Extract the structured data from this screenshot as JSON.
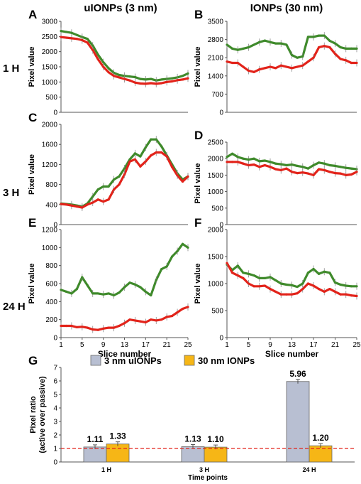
{
  "headers": {
    "col_left": "uIONPs (3 nm)",
    "col_right": "IONPs (30 nm)",
    "row_1": "1 H",
    "row_2": "3 H",
    "row_3": "24 H"
  },
  "colors": {
    "green_series": "#3f8a2b",
    "red_series": "#e2231a",
    "gray_bar": "#b8bfd2",
    "orange_bar": "#f6b616",
    "threshold_line": "#e2231a"
  },
  "chart_data": [
    {
      "panel": "A",
      "type": "line",
      "xlabel": "",
      "ylabel": "Pixel value",
      "ylim": [
        0,
        3000
      ],
      "yticks": [
        0,
        500,
        1000,
        1500,
        2000,
        2500,
        3000
      ],
      "x": [
        1,
        2,
        3,
        4,
        5,
        6,
        7,
        8,
        9,
        10,
        11,
        12,
        13,
        14,
        15,
        16,
        17,
        18,
        19,
        20,
        21,
        22,
        23,
        24,
        25
      ],
      "series": [
        {
          "values": [
            2680,
            2650,
            2620,
            2550,
            2480,
            2420,
            2200,
            1900,
            1650,
            1450,
            1300,
            1230,
            1200,
            1180,
            1160,
            1100,
            1080,
            1100,
            1050,
            1080,
            1100,
            1120,
            1150,
            1200,
            1280
          ]
        },
        {
          "values": [
            2480,
            2460,
            2440,
            2420,
            2380,
            2300,
            2050,
            1750,
            1500,
            1320,
            1200,
            1150,
            1100,
            1050,
            980,
            950,
            940,
            960,
            940,
            960,
            1000,
            1020,
            1060,
            1080,
            1120
          ]
        }
      ]
    },
    {
      "panel": "B",
      "type": "line",
      "xlabel": "",
      "ylabel": "Pixel value",
      "ylim": [
        0,
        3500
      ],
      "yticks": [
        0,
        700,
        1400,
        2100,
        2800,
        3500
      ],
      "x": [
        1,
        2,
        3,
        4,
        5,
        6,
        7,
        8,
        9,
        10,
        11,
        12,
        13,
        14,
        15,
        16,
        17,
        18,
        19,
        20,
        21,
        22,
        23,
        24,
        25
      ],
      "series": [
        {
          "values": [
            2600,
            2450,
            2400,
            2450,
            2500,
            2600,
            2700,
            2760,
            2700,
            2650,
            2650,
            2600,
            2200,
            2100,
            2150,
            2900,
            2900,
            2950,
            2950,
            2750,
            2650,
            2500,
            2450,
            2450,
            2450
          ]
        },
        {
          "values": [
            1950,
            1900,
            1900,
            1750,
            1600,
            1550,
            1650,
            1700,
            1750,
            1700,
            1800,
            1750,
            1700,
            1750,
            1800,
            1950,
            2100,
            2500,
            2550,
            2500,
            2250,
            2050,
            2000,
            1900,
            1900
          ]
        }
      ]
    },
    {
      "panel": "C",
      "type": "line",
      "xlabel": "",
      "ylabel": "Pixel value",
      "ylim": [
        0,
        2000
      ],
      "yticks": [
        0,
        400,
        800,
        1200,
        1600,
        2000
      ],
      "x": [
        1,
        2,
        3,
        4,
        5,
        6,
        7,
        8,
        9,
        10,
        11,
        12,
        13,
        14,
        15,
        16,
        17,
        18,
        19,
        20,
        21,
        22,
        23,
        24,
        25
      ],
      "series": [
        {
          "values": [
            420,
            410,
            400,
            380,
            360,
            420,
            560,
            700,
            760,
            760,
            900,
            960,
            1120,
            1300,
            1420,
            1360,
            1540,
            1700,
            1700,
            1560,
            1380,
            1200,
            1020,
            900,
            960
          ]
        },
        {
          "values": [
            410,
            400,
            380,
            360,
            340,
            400,
            440,
            500,
            460,
            500,
            700,
            800,
            1000,
            1260,
            1300,
            1160,
            1260,
            1380,
            1440,
            1440,
            1360,
            1150,
            980,
            860,
            960
          ]
        }
      ]
    },
    {
      "panel": "D",
      "type": "line",
      "xlabel": "",
      "ylabel": "Pixel value",
      "ylim": [
        0,
        2500
      ],
      "yticks": [
        0,
        500,
        1000,
        1500,
        2000,
        2500
      ],
      "x": [
        1,
        2,
        3,
        4,
        5,
        6,
        7,
        8,
        9,
        10,
        11,
        12,
        13,
        14,
        15,
        16,
        17,
        18,
        19,
        20,
        21,
        22,
        23,
        24,
        25
      ],
      "series": [
        {
          "values": [
            2050,
            2150,
            2050,
            2000,
            1970,
            2000,
            1920,
            1940,
            1900,
            1850,
            1830,
            1800,
            1820,
            1780,
            1750,
            1700,
            1800,
            1880,
            1850,
            1800,
            1780,
            1750,
            1720,
            1700,
            1680
          ]
        },
        {
          "values": [
            1900,
            1900,
            1900,
            1850,
            1800,
            1820,
            1750,
            1800,
            1750,
            1680,
            1650,
            1700,
            1600,
            1560,
            1580,
            1550,
            1500,
            1680,
            1650,
            1600,
            1560,
            1550,
            1500,
            1520,
            1600
          ]
        }
      ]
    },
    {
      "panel": "E",
      "type": "line",
      "xlabel": "Slice number",
      "ylabel": "Pixel value",
      "ylim": [
        0,
        1200
      ],
      "yticks": [
        0,
        200,
        400,
        600,
        800,
        1000,
        1200
      ],
      "xticks": [
        1,
        5,
        9,
        13,
        17,
        21,
        25
      ],
      "x": [
        1,
        2,
        3,
        4,
        5,
        6,
        7,
        8,
        9,
        10,
        11,
        12,
        13,
        14,
        15,
        16,
        17,
        18,
        19,
        20,
        21,
        22,
        23,
        24,
        25
      ],
      "series": [
        {
          "values": [
            530,
            510,
            490,
            540,
            670,
            580,
            490,
            490,
            480,
            490,
            470,
            500,
            560,
            610,
            590,
            560,
            510,
            470,
            640,
            760,
            790,
            900,
            960,
            1040,
            1000
          ]
        },
        {
          "values": [
            130,
            130,
            130,
            115,
            120,
            110,
            90,
            85,
            100,
            110,
            110,
            130,
            160,
            200,
            190,
            180,
            170,
            200,
            190,
            200,
            230,
            240,
            280,
            320,
            340
          ]
        }
      ]
    },
    {
      "panel": "F",
      "type": "line",
      "xlabel": "Slice number",
      "ylabel": "Pixel value",
      "ylim": [
        0,
        2000
      ],
      "yticks": [
        0,
        500,
        1000,
        1500,
        2000
      ],
      "xticks": [
        1,
        5,
        9,
        13,
        17,
        21,
        25
      ],
      "x": [
        1,
        2,
        3,
        4,
        5,
        6,
        7,
        8,
        9,
        10,
        11,
        12,
        13,
        14,
        15,
        16,
        17,
        18,
        19,
        20,
        21,
        22,
        23,
        24,
        25
      ],
      "series": [
        {
          "values": [
            1350,
            1250,
            1330,
            1200,
            1180,
            1150,
            1100,
            1100,
            1120,
            1060,
            1000,
            980,
            970,
            940,
            1000,
            1200,
            1270,
            1180,
            1220,
            1200,
            1020,
            980,
            960,
            950,
            950
          ]
        },
        {
          "values": [
            1380,
            1200,
            1150,
            1100,
            1000,
            950,
            950,
            960,
            900,
            850,
            800,
            800,
            800,
            820,
            900,
            1000,
            960,
            900,
            850,
            900,
            850,
            800,
            800,
            780,
            770
          ]
        }
      ]
    },
    {
      "panel": "G",
      "type": "bar",
      "xlabel": "Time points",
      "ylabel_line1": "Pixel ratio",
      "ylabel_line2": "(active over passive)",
      "ylim": [
        0,
        7
      ],
      "yticks": [
        0,
        1,
        2,
        3,
        4,
        5,
        6,
        7
      ],
      "categories": [
        "1 H",
        "3 H",
        "24 H"
      ],
      "reference_line": 1,
      "series": [
        {
          "name": "3 nm uIONPs",
          "values": [
            1.11,
            1.13,
            5.96
          ],
          "labels": [
            "1.11",
            "1.13",
            "5.96"
          ]
        },
        {
          "name": "30 nm IONPs",
          "values": [
            1.33,
            1.1,
            1.2
          ],
          "labels": [
            "1.33",
            "1.10",
            "1.20"
          ]
        }
      ]
    }
  ]
}
